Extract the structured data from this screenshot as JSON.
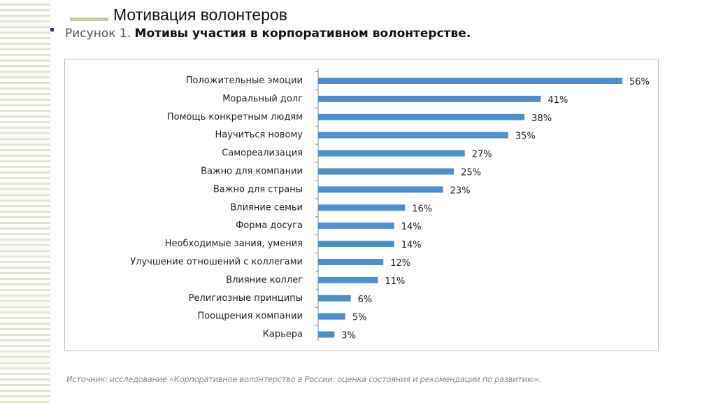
{
  "slide": {
    "title": "Мотивация волонтеров",
    "figure_prefix": "Рисунок 1.",
    "figure_title": "Мотивы участия в корпоративном волонтерстве.",
    "source": "Источник: исследование «Корпоративное волонтерство в России: оценка состояния и рекомендации по развитию»."
  },
  "chart_data": {
    "type": "bar",
    "orientation": "horizontal",
    "bar_color": "#4f8fcf",
    "categories": [
      "Положительные эмоции",
      "Моральный долг",
      "Помощь конкретным людям",
      "Научиться новому",
      "Самореализация",
      "Важно для компании",
      "Важно для страны",
      "Влияние семьи",
      "Форма досуга",
      "Необходимые зания, умения",
      "Улучшение отношений с коллегами",
      "Влияние коллег",
      "Религиозные принципы",
      "Поощрения компании",
      "Карьера"
    ],
    "values": [
      56,
      41,
      38,
      35,
      27,
      25,
      23,
      16,
      14,
      14,
      12,
      11,
      6,
      5,
      3
    ],
    "labels": [
      "56%",
      "41%",
      "38%",
      "35%",
      "27%",
      "25%",
      "23%",
      "16%",
      "14%",
      "14%",
      "12%",
      "11%",
      "6%",
      "5%",
      "3%"
    ],
    "title": "Мотивы участия в корпоративном волонтерстве.",
    "grid": false
  }
}
